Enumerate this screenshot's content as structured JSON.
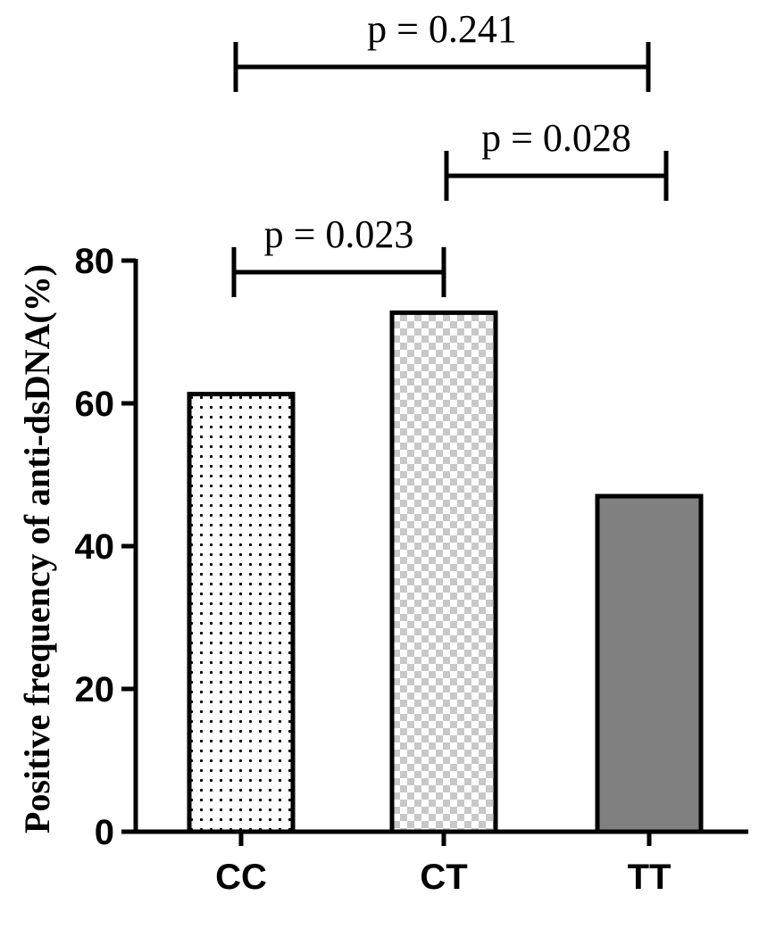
{
  "chart_data": {
    "type": "bar",
    "title": "",
    "xlabel": "",
    "ylabel": "Positive frequency of anti-dsDNA(%)",
    "ylim": [
      0,
      80
    ],
    "yticks": [
      0,
      20,
      40,
      60,
      80
    ],
    "grid": false,
    "categories": [
      "CC",
      "CT",
      "TT"
    ],
    "values": [
      61.3,
      72.7,
      47.0
    ],
    "fills": [
      "dots",
      "checker",
      "solid-gray"
    ],
    "colors": {
      "solid": "#808080",
      "checker": "#c8c8c8",
      "dots": "#000000",
      "axis": "#000000"
    },
    "significance": [
      {
        "from": 0,
        "to": 1,
        "label": "p = 0.023"
      },
      {
        "from": 1,
        "to": 2,
        "label": "p = 0.028"
      },
      {
        "from": 0,
        "to": 2,
        "label": "p = 0.241"
      }
    ]
  }
}
